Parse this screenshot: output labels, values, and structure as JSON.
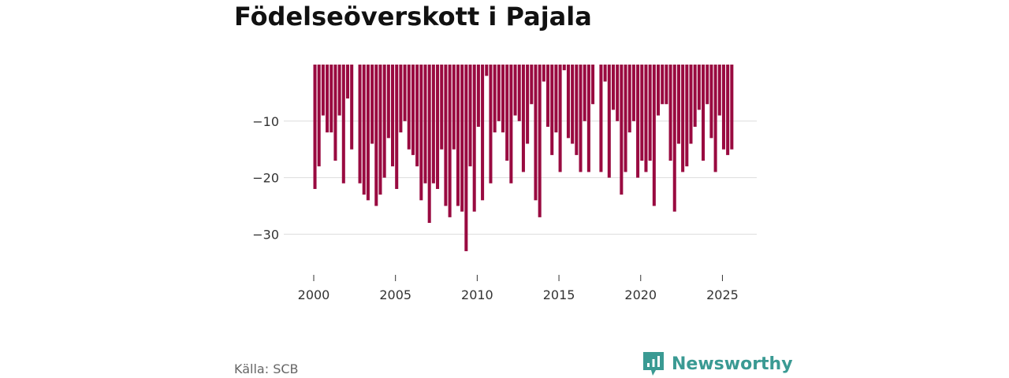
{
  "title": "Födelseöverskott i Pajala",
  "source": "Källa: SCB",
  "brand": {
    "name": "Newsworthy",
    "icon": "newsworthy-logo-icon",
    "color": "#3a9a93"
  },
  "colors": {
    "bar": "#990a40",
    "grid": "#dddddd"
  },
  "chart_data": {
    "type": "bar",
    "title": "Födelseöverskott i Pajala",
    "xlabel": "",
    "ylabel": "",
    "ylim": [
      -36,
      0
    ],
    "xlim": [
      2000,
      2025.75
    ],
    "y_ticks": [
      -10,
      -20,
      -30
    ],
    "y_tick_labels": [
      "−10",
      "−20",
      "−30"
    ],
    "x_ticks": [
      2000,
      2005,
      2010,
      2015,
      2020,
      2025
    ],
    "x_tick_labels": [
      "2000",
      "2005",
      "2010",
      "2015",
      "2020",
      "2025"
    ],
    "period": "quarterly",
    "series": [
      {
        "name": "Födelseöverskott",
        "start": "2000 Q1",
        "values": [
          -22,
          -18,
          -9,
          -12,
          -12,
          -17,
          -9,
          -21,
          -6,
          -15,
          0,
          -21,
          -23,
          -24,
          -14,
          -25,
          -23,
          -20,
          -13,
          -18,
          -22,
          -12,
          -10,
          -15,
          -16,
          -18,
          -24,
          -21,
          -28,
          -21,
          -22,
          -15,
          -25,
          -27,
          -15,
          -25,
          -26,
          -33,
          -18,
          -26,
          -11,
          -24,
          -2,
          -21,
          -12,
          -10,
          -12,
          -17,
          -21,
          -9,
          -10,
          -19,
          -14,
          -7,
          -24,
          -27,
          -3,
          -11,
          -16,
          -12,
          -19,
          -1,
          -13,
          -14,
          -16,
          -19,
          -10,
          -19,
          -7,
          0,
          -19,
          -3,
          -20,
          -8,
          -10,
          -23,
          -19,
          -12,
          -10,
          -20,
          -17,
          -19,
          -17,
          -25,
          -9,
          -7,
          -7,
          -17,
          -26,
          -14,
          -19,
          -18,
          -14,
          -11,
          -8,
          -17,
          -7,
          -13,
          -19,
          -9,
          -15,
          -16,
          -15
        ]
      }
    ]
  }
}
